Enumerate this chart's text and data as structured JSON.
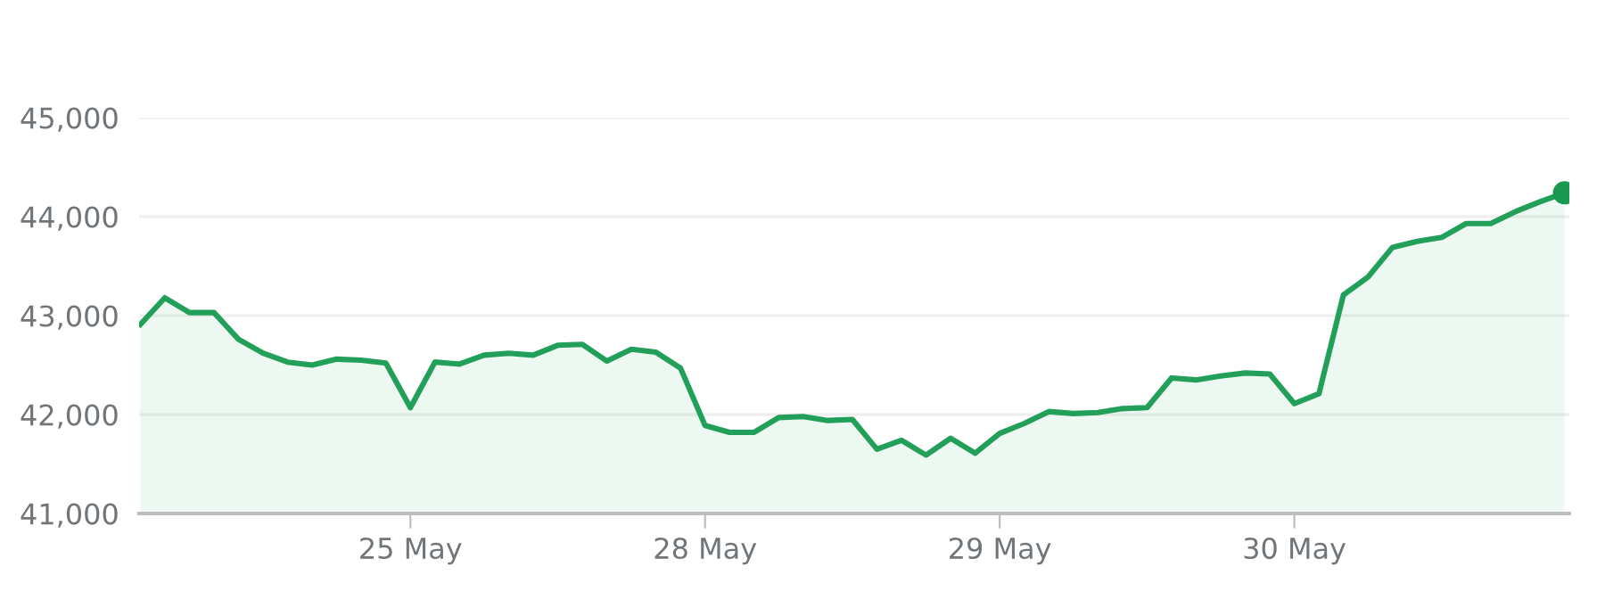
{
  "chart_data": {
    "type": "area",
    "categories": [
      null,
      null,
      null,
      null,
      null,
      null,
      null,
      null,
      null,
      null,
      null,
      "25 May",
      null,
      null,
      null,
      null,
      null,
      null,
      null,
      null,
      null,
      null,
      null,
      "28 May",
      null,
      null,
      null,
      null,
      null,
      null,
      null,
      null,
      null,
      null,
      null,
      "29 May",
      null,
      null,
      null,
      null,
      null,
      null,
      null,
      null,
      null,
      null,
      null,
      "30 May",
      null,
      null,
      null,
      null,
      null,
      null,
      null,
      null,
      null,
      null,
      null
    ],
    "ylim": [
      41000,
      45000
    ],
    "yticks": [
      {
        "value": 41000,
        "label": "41,000"
      },
      {
        "value": 42000,
        "label": "42,000"
      },
      {
        "value": 43000,
        "label": "43,000"
      },
      {
        "value": 44000,
        "label": "44,000"
      },
      {
        "value": 45000,
        "label": "45,000"
      }
    ],
    "grid": "y",
    "marker": "none",
    "series": [
      {
        "color": "#22a05a",
        "values": [
          42910,
          43180,
          43030,
          43030,
          42760,
          42620,
          42530,
          42500,
          42560,
          42550,
          42520,
          42070,
          42530,
          42510,
          42600,
          42620,
          42600,
          42700,
          42710,
          42540,
          42660,
          42630,
          42470,
          41890,
          41820,
          41820,
          41970,
          41980,
          41940,
          41950,
          41650,
          41740,
          41590,
          41760,
          41610,
          41810,
          41910,
          42030,
          42010,
          42020,
          42060,
          42070,
          42370,
          42350,
          42390,
          42420,
          42410,
          42110,
          42210,
          43210,
          43390,
          43690,
          43750,
          43790,
          43930,
          43930,
          44050,
          44150,
          44240
        ]
      },
      {
        "type": "scatter",
        "color": "#1a9850",
        "marker": "circle",
        "values": [
          null,
          null,
          null,
          null,
          null,
          null,
          null,
          null,
          null,
          null,
          null,
          null,
          null,
          null,
          null,
          null,
          null,
          null,
          null,
          null,
          null,
          null,
          null,
          null,
          null,
          null,
          null,
          null,
          null,
          null,
          null,
          null,
          null,
          null,
          null,
          null,
          null,
          null,
          null,
          null,
          null,
          null,
          null,
          null,
          null,
          null,
          null,
          null,
          null,
          null,
          null,
          null,
          null,
          null,
          null,
          null,
          null,
          null,
          44240
        ]
      }
    ]
  }
}
